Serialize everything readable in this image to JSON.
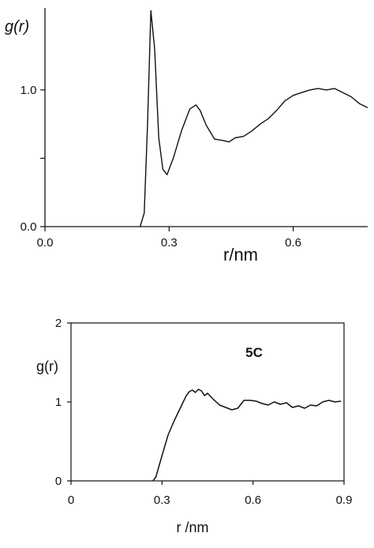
{
  "chart_data": [
    {
      "type": "line",
      "ylabel": "g(r)",
      "xlabel": "r/nm",
      "xlim": [
        0.0,
        0.78
      ],
      "ylim": [
        0.0,
        1.6
      ],
      "xticks": [
        {
          "value": 0.0,
          "label": "0.0"
        },
        {
          "value": 0.3,
          "label": "0.3"
        },
        {
          "value": 0.6,
          "label": "0.6"
        }
      ],
      "yticks": [
        {
          "value": 0.0,
          "label": "0.0"
        },
        {
          "value": 0.5,
          "label": ""
        },
        {
          "value": 1.0,
          "label": "1.0"
        }
      ],
      "series": [
        {
          "x": [
            0.23,
            0.24,
            0.248,
            0.256,
            0.265,
            0.275,
            0.285,
            0.295,
            0.31,
            0.33,
            0.35,
            0.365,
            0.375,
            0.39,
            0.41,
            0.43,
            0.445,
            0.46,
            0.48,
            0.5,
            0.52,
            0.54,
            0.56,
            0.58,
            0.6,
            0.62,
            0.64,
            0.66,
            0.68,
            0.7,
            0.72,
            0.74,
            0.76,
            0.78
          ],
          "y": [
            0.0,
            0.1,
            0.75,
            1.58,
            1.3,
            0.65,
            0.42,
            0.38,
            0.5,
            0.7,
            0.86,
            0.89,
            0.85,
            0.74,
            0.64,
            0.63,
            0.62,
            0.65,
            0.66,
            0.7,
            0.75,
            0.79,
            0.85,
            0.92,
            0.96,
            0.98,
            1.0,
            1.01,
            1.0,
            1.01,
            0.98,
            0.95,
            0.9,
            0.87
          ]
        }
      ]
    },
    {
      "type": "line",
      "ylabel": "g(r)",
      "xlabel": "r /nm",
      "annotation": "5C",
      "xlim": [
        0.0,
        0.9
      ],
      "ylim": [
        0,
        2
      ],
      "xticks": [
        {
          "value": 0.0,
          "label": "0"
        },
        {
          "value": 0.3,
          "label": "0.3"
        },
        {
          "value": 0.6,
          "label": "0.6"
        },
        {
          "value": 0.9,
          "label": "0.9"
        }
      ],
      "yticks": [
        {
          "value": 0,
          "label": "0"
        },
        {
          "value": 1,
          "label": "1"
        },
        {
          "value": 2,
          "label": "2"
        }
      ],
      "series": [
        {
          "x": [
            0.27,
            0.28,
            0.3,
            0.32,
            0.34,
            0.36,
            0.38,
            0.39,
            0.4,
            0.41,
            0.42,
            0.43,
            0.44,
            0.45,
            0.47,
            0.49,
            0.51,
            0.53,
            0.55,
            0.57,
            0.59,
            0.61,
            0.63,
            0.65,
            0.67,
            0.69,
            0.71,
            0.73,
            0.75,
            0.77,
            0.79,
            0.81,
            0.83,
            0.85,
            0.87,
            0.89
          ],
          "y": [
            0.0,
            0.05,
            0.32,
            0.58,
            0.76,
            0.92,
            1.08,
            1.13,
            1.15,
            1.12,
            1.16,
            1.14,
            1.08,
            1.11,
            1.03,
            0.96,
            0.93,
            0.9,
            0.92,
            1.02,
            1.02,
            1.01,
            0.98,
            0.96,
            1.0,
            0.97,
            0.99,
            0.93,
            0.95,
            0.92,
            0.96,
            0.95,
            1.0,
            1.02,
            1.0,
            1.01
          ]
        }
      ]
    }
  ]
}
